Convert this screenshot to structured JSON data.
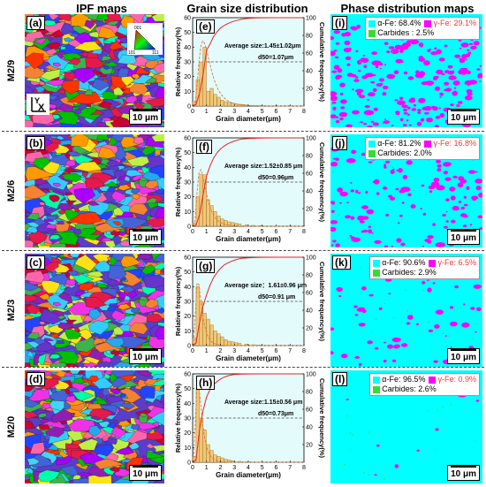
{
  "headers": {
    "ipf": "IPF maps",
    "grain": "Grain size distribution",
    "phase": "Phase distribution maps"
  },
  "rows": [
    {
      "sample": "M2/9",
      "ipf_label": "(a)",
      "grain_label": "(e)",
      "phase_label": "(i)",
      "average": "Average  size:1.45±1.02μm",
      "d50": "d50=1.07μm",
      "alpha": "α-Fe: 68.4%",
      "gamma": "γ-Fe: 29.1%",
      "carbides": "Carbides : 2.5%",
      "gamma_fraction": 0.291
    },
    {
      "sample": "M2/6",
      "ipf_label": "(b)",
      "grain_label": "(f)",
      "phase_label": "(j)",
      "average": "Average  size:1.52±0.85 μm",
      "d50": "d50=0.96μm",
      "alpha": "α-Fe: 81.2%",
      "gamma": "γ-Fe: 16.8%",
      "carbides": "Carbides: 2.0%",
      "gamma_fraction": 0.168
    },
    {
      "sample": "M2/3",
      "ipf_label": "(c)",
      "grain_label": "(g)",
      "phase_label": "(k)",
      "average": "Average size：1.61±0.96 μm",
      "d50": "d50=0.91 μm",
      "alpha": "α-Fe: 90.6%",
      "gamma": "γ-Fe: 6.5%",
      "carbides": "Carbides: 2.9%",
      "gamma_fraction": 0.065
    },
    {
      "sample": "M2/0",
      "ipf_label": "(d)",
      "grain_label": "(h)",
      "phase_label": "(l)",
      "average": "Average size:1.15±0.56 μm",
      "d50": "d50=0.73μm",
      "alpha": "α-Fe: 96.5%",
      "gamma": "γ-Fe: 0.9%",
      "carbides": "Carbides: 2.6%",
      "gamma_fraction": 0.009
    }
  ],
  "scale_bar": "10 μm",
  "axis_x_label": "Grain diameter(μm)",
  "axis_y_left": "Relative  frequency(%)",
  "axis_y_right": "Cumulative frequency(%)",
  "legend_colors": {
    "alpha": "#00ffff",
    "gamma": "#ff00ff",
    "carbides": "#33dd33",
    "gamma_text": "#ff3333"
  },
  "ipf_key": {
    "top": "001",
    "left": "101",
    "right": "111"
  },
  "axes_glyph": {
    "y": "Y",
    "x": "X"
  },
  "chart_data": [
    {
      "type": "bar",
      "x": [
        0.25,
        0.5,
        0.75,
        1.0,
        1.25,
        1.5,
        1.75,
        2.0,
        2.25,
        2.5,
        2.75,
        3.0,
        3.25,
        3.5,
        3.75,
        4.0,
        4.5,
        5.0,
        6.0
      ],
      "values": [
        3,
        18,
        30,
        40,
        10,
        12,
        8,
        6,
        4,
        3,
        2.5,
        2,
        1.5,
        1.2,
        1,
        0.8,
        0.5,
        0.3,
        0.2
      ],
      "xlim": [
        0,
        8
      ],
      "ylim": [
        0,
        60
      ],
      "y2lim": [
        0,
        100
      ],
      "xticks": [
        0,
        1,
        2,
        3,
        4,
        5,
        6,
        7,
        8
      ],
      "yticks": [
        0,
        10,
        20,
        30,
        40,
        50,
        60
      ],
      "y2ticks": [
        20,
        40,
        60,
        80,
        100
      ],
      "d50_y": 50,
      "xlabel": "Grain diameter(μm)",
      "ylabel": "Relative  frequency(%)",
      "y2label": "Cumulative frequency(%)"
    },
    {
      "type": "bar",
      "x": [
        0.25,
        0.5,
        0.75,
        1.0,
        1.25,
        1.5,
        1.75,
        2.0,
        2.25,
        2.5,
        2.75,
        3.0,
        3.25,
        3.5,
        4.0,
        4.5,
        5.0,
        6.0
      ],
      "values": [
        2,
        20,
        35,
        35,
        18,
        14,
        10,
        7,
        5,
        4,
        3,
        2.5,
        2,
        1.5,
        1,
        0.6,
        0.4,
        0.2
      ],
      "xlim": [
        0,
        8
      ],
      "ylim": [
        0,
        60
      ],
      "y2lim": [
        0,
        100
      ],
      "xticks": [
        0,
        1,
        2,
        3,
        4,
        5,
        6,
        7,
        8
      ],
      "yticks": [
        0,
        10,
        20,
        30,
        40,
        50,
        60
      ],
      "y2ticks": [
        20,
        40,
        60,
        80,
        100
      ],
      "d50_y": 50,
      "xlabel": "Grain diameter(μm)",
      "ylabel": "Relative  frequency(%)",
      "y2label": "Cumulative frequency(%)"
    },
    {
      "type": "bar",
      "x": [
        0.25,
        0.5,
        0.75,
        1.0,
        1.25,
        1.5,
        1.75,
        2.0,
        2.25,
        2.5,
        2.75,
        3.0,
        3.25,
        3.5,
        4.0,
        4.5,
        5.0,
        6.0
      ],
      "values": [
        5,
        40,
        30,
        22,
        18,
        14,
        10,
        8,
        6,
        4,
        3,
        2.5,
        2,
        1.5,
        1,
        0.6,
        0.4,
        0.2
      ],
      "xlim": [
        0,
        8
      ],
      "ylim": [
        0,
        60
      ],
      "y2lim": [
        0,
        100
      ],
      "xticks": [
        0,
        1,
        2,
        3,
        4,
        5,
        6,
        7,
        8
      ],
      "yticks": [
        0,
        10,
        20,
        30,
        40,
        50,
        60
      ],
      "y2ticks": [
        20,
        40,
        60,
        80,
        100
      ],
      "d50_y": 50,
      "xlabel": "Grain diameter(μm)",
      "ylabel": "Relative  frequency(%)",
      "y2label": "Cumulative frequency(%)"
    },
    {
      "type": "bar",
      "x": [
        0.25,
        0.5,
        0.75,
        1.0,
        1.25,
        1.5,
        1.75,
        2.0,
        2.25,
        2.5,
        2.75,
        3.0,
        3.5,
        4.0,
        5.0
      ],
      "values": [
        4,
        50,
        30,
        22,
        12,
        8,
        5,
        4,
        3,
        2,
        1.5,
        1,
        0.6,
        0.3,
        0.1
      ],
      "xlim": [
        0,
        8
      ],
      "ylim": [
        0,
        60
      ],
      "y2lim": [
        0,
        100
      ],
      "xticks": [
        0,
        1,
        2,
        3,
        4,
        5,
        6,
        7,
        8
      ],
      "yticks": [
        0,
        10,
        20,
        30,
        40,
        50,
        60
      ],
      "y2ticks": [
        20,
        40,
        60,
        80,
        100
      ],
      "d50_y": 50,
      "xlabel": "Grain diameter(μm)",
      "ylabel": "Relative  frequency(%)",
      "y2label": "Cumulative frequency(%)"
    }
  ]
}
